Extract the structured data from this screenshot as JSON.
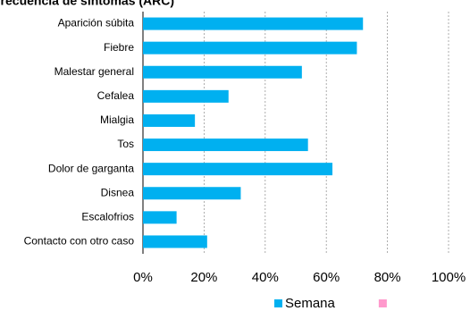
{
  "chart_data": {
    "type": "barh",
    "title": "Frecuencia de síntomas (ARC)",
    "categories": [
      "Aparición súbita",
      "Fiebre",
      "Malestar general",
      "Cefalea",
      "Mialgia",
      "Tos",
      "Dolor de garganta",
      "Disnea",
      "Escalofrios",
      "Contacto con otro caso"
    ],
    "series": [
      {
        "name": "Semana",
        "color": "#00b0f0",
        "values": [
          72,
          70,
          52,
          28,
          17,
          54,
          62,
          32,
          11,
          21
        ]
      },
      {
        "name": null,
        "color": "#ff99cc",
        "values": [
          null,
          null,
          null,
          null,
          null,
          null,
          null,
          null,
          null,
          null
        ]
      }
    ],
    "xlim": [
      0,
      100
    ],
    "xticks": [
      {
        "value": 0,
        "label": "0%"
      },
      {
        "value": 20,
        "label": "20%"
      },
      {
        "value": 40,
        "label": "40%"
      },
      {
        "value": 60,
        "label": "60%"
      },
      {
        "value": 80,
        "label": "80%"
      },
      {
        "value": 100,
        "label": "100%"
      }
    ],
    "grid": true,
    "legend": "bottom"
  }
}
